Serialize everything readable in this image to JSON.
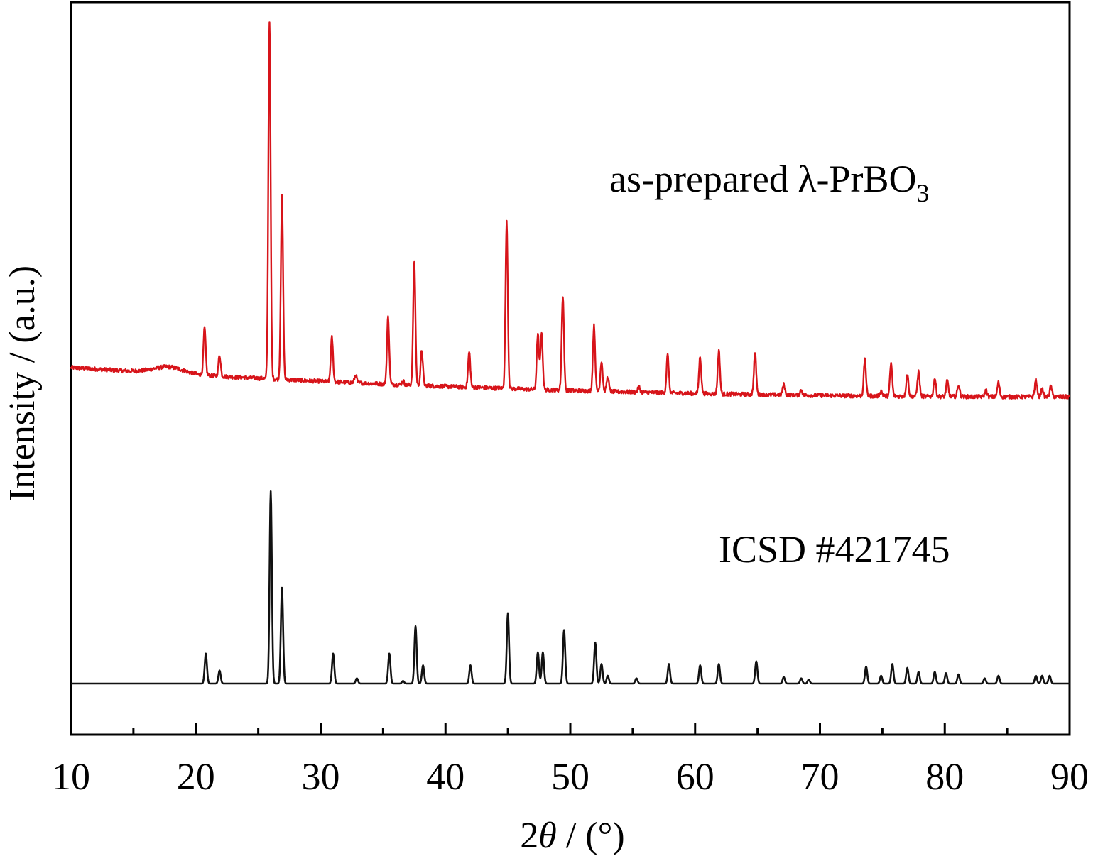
{
  "chart_data": {
    "type": "line",
    "xlabel_prefix": "2",
    "xlabel_theta": "θ",
    "xlabel_suffix": " / (°)",
    "ylabel": "Intensity / (a.u.)",
    "xlim": [
      10,
      90
    ],
    "x_ticks": [
      "10",
      "20",
      "30",
      "40",
      "50",
      "60",
      "70",
      "80",
      "90"
    ],
    "x_tick_values": [
      10,
      20,
      30,
      40,
      50,
      60,
      70,
      80,
      90
    ],
    "x_minor_ticks": [
      15,
      25,
      35,
      45,
      55,
      65,
      75,
      85
    ],
    "y_ticks_shown": false,
    "grid": false,
    "series": [
      {
        "name": "as-prepared λ-PrBO3",
        "color": "#d7141a",
        "offset": 0.44,
        "baseline_start": 0.045,
        "baseline_end": 0.0,
        "amorphous_hump": {
          "center": 17.8,
          "height": 0.01,
          "width": 1.2
        },
        "peaks": [
          {
            "x": 20.7,
            "h": 0.072
          },
          {
            "x": 21.9,
            "h": 0.032
          },
          {
            "x": 25.9,
            "h": 0.55
          },
          {
            "x": 26.9,
            "h": 0.28
          },
          {
            "x": 30.9,
            "h": 0.068
          },
          {
            "x": 32.8,
            "h": 0.012
          },
          {
            "x": 35.4,
            "h": 0.103
          },
          {
            "x": 36.6,
            "h": 0.006
          },
          {
            "x": 37.5,
            "h": 0.19
          },
          {
            "x": 38.1,
            "h": 0.054
          },
          {
            "x": 41.9,
            "h": 0.054
          },
          {
            "x": 44.9,
            "h": 0.255
          },
          {
            "x": 47.4,
            "h": 0.085
          },
          {
            "x": 47.7,
            "h": 0.088
          },
          {
            "x": 49.4,
            "h": 0.145
          },
          {
            "x": 51.9,
            "h": 0.1
          },
          {
            "x": 52.5,
            "h": 0.046
          },
          {
            "x": 53.0,
            "h": 0.022
          },
          {
            "x": 55.5,
            "h": 0.008
          },
          {
            "x": 57.8,
            "h": 0.058
          },
          {
            "x": 60.4,
            "h": 0.056
          },
          {
            "x": 61.9,
            "h": 0.066
          },
          {
            "x": 64.8,
            "h": 0.064
          },
          {
            "x": 67.1,
            "h": 0.016
          },
          {
            "x": 68.5,
            "h": 0.008
          },
          {
            "x": 73.6,
            "h": 0.055
          },
          {
            "x": 74.9,
            "h": 0.008
          },
          {
            "x": 75.7,
            "h": 0.05
          },
          {
            "x": 77.0,
            "h": 0.034
          },
          {
            "x": 77.9,
            "h": 0.038
          },
          {
            "x": 79.2,
            "h": 0.028
          },
          {
            "x": 80.2,
            "h": 0.024
          },
          {
            "x": 81.1,
            "h": 0.018
          },
          {
            "x": 83.3,
            "h": 0.01
          },
          {
            "x": 84.3,
            "h": 0.022
          },
          {
            "x": 87.3,
            "h": 0.026
          },
          {
            "x": 87.8,
            "h": 0.012
          },
          {
            "x": 88.5,
            "h": 0.016
          }
        ]
      },
      {
        "name": "ICSD #421745",
        "color": "#111111",
        "offset": 0.0,
        "peaks": [
          {
            "x": 20.8,
            "h": 0.046
          },
          {
            "x": 21.9,
            "h": 0.02
          },
          {
            "x": 26.0,
            "h": 0.295
          },
          {
            "x": 26.9,
            "h": 0.147
          },
          {
            "x": 31.0,
            "h": 0.046
          },
          {
            "x": 32.9,
            "h": 0.008
          },
          {
            "x": 35.5,
            "h": 0.046
          },
          {
            "x": 36.6,
            "h": 0.004
          },
          {
            "x": 37.6,
            "h": 0.088
          },
          {
            "x": 38.2,
            "h": 0.028
          },
          {
            "x": 42.0,
            "h": 0.028
          },
          {
            "x": 45.0,
            "h": 0.108
          },
          {
            "x": 47.4,
            "h": 0.048
          },
          {
            "x": 47.8,
            "h": 0.048
          },
          {
            "x": 49.5,
            "h": 0.082
          },
          {
            "x": 52.0,
            "h": 0.063
          },
          {
            "x": 52.5,
            "h": 0.03
          },
          {
            "x": 53.0,
            "h": 0.012
          },
          {
            "x": 55.3,
            "h": 0.008
          },
          {
            "x": 57.9,
            "h": 0.03
          },
          {
            "x": 60.4,
            "h": 0.028
          },
          {
            "x": 61.9,
            "h": 0.03
          },
          {
            "x": 64.9,
            "h": 0.034
          },
          {
            "x": 67.1,
            "h": 0.01
          },
          {
            "x": 68.5,
            "h": 0.008
          },
          {
            "x": 69.1,
            "h": 0.006
          },
          {
            "x": 73.7,
            "h": 0.026
          },
          {
            "x": 74.9,
            "h": 0.012
          },
          {
            "x": 75.8,
            "h": 0.03
          },
          {
            "x": 77.0,
            "h": 0.024
          },
          {
            "x": 77.9,
            "h": 0.018
          },
          {
            "x": 79.2,
            "h": 0.018
          },
          {
            "x": 80.1,
            "h": 0.016
          },
          {
            "x": 81.1,
            "h": 0.014
          },
          {
            "x": 83.2,
            "h": 0.008
          },
          {
            "x": 84.3,
            "h": 0.012
          },
          {
            "x": 87.3,
            "h": 0.012
          },
          {
            "x": 87.8,
            "h": 0.012
          },
          {
            "x": 88.4,
            "h": 0.012
          }
        ]
      }
    ],
    "annotations": [
      {
        "text": "as-prepared  λ-PrBO",
        "subscript": "3",
        "series": "as-prepared λ-PrBO3"
      },
      {
        "text": "ICSD #421745",
        "series": "ICSD #421745"
      }
    ]
  }
}
